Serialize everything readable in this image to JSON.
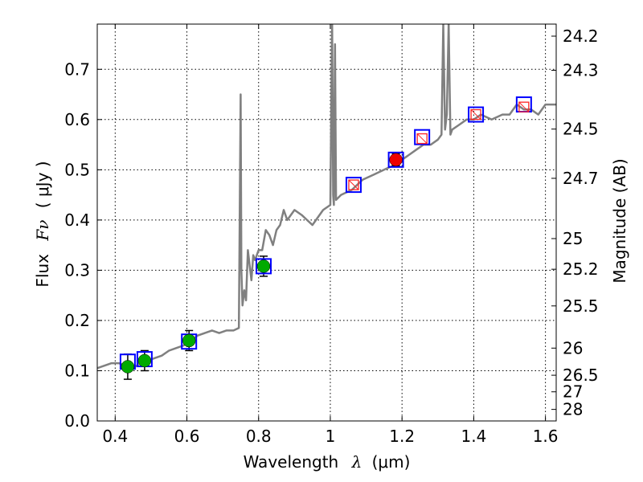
{
  "chart_data": {
    "type": "scatter",
    "xlabel_text": "Wavelength",
    "xlabel_symbol": "λ",
    "xlabel_unit": "(μm)",
    "ylabel_text": "Flux",
    "ylabel_symbol": "Fν",
    "ylabel_unit": "( μJy )",
    "y2label": "Magnitude (AB)",
    "xlim": [
      0.35,
      1.63
    ],
    "ylim": [
      0.0,
      0.79
    ],
    "grid": true,
    "x_ticks": [
      0.4,
      0.6,
      0.8,
      1.0,
      1.2,
      1.4,
      1.6
    ],
    "x_tick_labels": [
      "0.4",
      "0.6",
      "0.8",
      "1",
      "1.2",
      "1.4",
      "1.6"
    ],
    "y_ticks": [
      0.0,
      0.1,
      0.2,
      0.3,
      0.4,
      0.5,
      0.6,
      0.7
    ],
    "y_tick_labels": [
      "0.0",
      "0.1",
      "0.2",
      "0.3",
      "0.4",
      "0.5",
      "0.6",
      "0.7"
    ],
    "y2_ticks": [
      {
        "label": "24.2",
        "flux": 0.766
      },
      {
        "label": "24.3",
        "flux": 0.698
      },
      {
        "label": "24.5",
        "flux": 0.581
      },
      {
        "label": "24.7",
        "flux": 0.483
      },
      {
        "label": "25",
        "flux": 0.363
      },
      {
        "label": "25.2",
        "flux": 0.302
      },
      {
        "label": "25.5",
        "flux": 0.229
      },
      {
        "label": "26",
        "flux": 0.145
      },
      {
        "label": "26.5",
        "flux": 0.091
      },
      {
        "label": "27",
        "flux": 0.058
      },
      {
        "label": "28",
        "flux": 0.023
      }
    ],
    "series": [
      {
        "name": "model_spectrum",
        "kind": "line",
        "color": "#808080",
        "x": [
          0.35,
          0.37,
          0.39,
          0.41,
          0.43,
          0.45,
          0.47,
          0.49,
          0.51,
          0.53,
          0.55,
          0.57,
          0.59,
          0.61,
          0.63,
          0.65,
          0.67,
          0.69,
          0.71,
          0.73,
          0.745,
          0.75,
          0.752,
          0.755,
          0.76,
          0.765,
          0.77,
          0.78,
          0.785,
          0.79,
          0.8,
          0.81,
          0.82,
          0.83,
          0.84,
          0.85,
          0.86,
          0.87,
          0.88,
          0.9,
          0.92,
          0.95,
          0.98,
          1.0,
          1.005,
          1.008,
          1.01,
          1.013,
          1.016,
          1.03,
          1.06,
          1.09,
          1.12,
          1.15,
          1.18,
          1.2,
          1.22,
          1.24,
          1.26,
          1.28,
          1.3,
          1.31,
          1.315,
          1.32,
          1.325,
          1.33,
          1.335,
          1.34,
          1.36,
          1.38,
          1.4,
          1.42,
          1.45,
          1.48,
          1.5,
          1.52,
          1.54,
          1.56,
          1.58,
          1.6,
          1.63
        ],
        "y": [
          0.105,
          0.11,
          0.115,
          0.115,
          0.11,
          0.105,
          0.115,
          0.12,
          0.125,
          0.13,
          0.14,
          0.145,
          0.15,
          0.16,
          0.17,
          0.175,
          0.18,
          0.175,
          0.18,
          0.18,
          0.185,
          0.65,
          0.3,
          0.23,
          0.26,
          0.24,
          0.34,
          0.28,
          0.33,
          0.32,
          0.34,
          0.34,
          0.38,
          0.37,
          0.35,
          0.38,
          0.39,
          0.42,
          0.4,
          0.42,
          0.41,
          0.39,
          0.42,
          0.43,
          0.8,
          0.45,
          0.43,
          0.75,
          0.44,
          0.45,
          0.46,
          0.48,
          0.49,
          0.5,
          0.51,
          0.52,
          0.53,
          0.54,
          0.55,
          0.55,
          0.56,
          0.57,
          0.79,
          0.58,
          0.61,
          0.79,
          0.57,
          0.58,
          0.59,
          0.6,
          0.6,
          0.61,
          0.6,
          0.61,
          0.61,
          0.63,
          0.62,
          0.62,
          0.61,
          0.63,
          0.63
        ]
      },
      {
        "name": "model_photometry",
        "kind": "open_square",
        "color": "#0000ff",
        "x": [
          0.435,
          0.482,
          0.606,
          0.814,
          1.065,
          1.183,
          1.256,
          1.406,
          1.54
        ],
        "y": [
          0.118,
          0.123,
          0.158,
          0.308,
          0.47,
          0.52,
          0.565,
          0.61,
          0.63
        ]
      },
      {
        "name": "observed_photometry_limits",
        "kind": "red_outline_square",
        "color": "#ff2222",
        "x": [
          1.065,
          1.256,
          1.406,
          1.54
        ],
        "y": [
          0.47,
          0.562,
          0.61,
          0.625
        ]
      },
      {
        "name": "observed_photometry",
        "kind": "filled_circle",
        "colors": [
          "#00aa00",
          "#00aa00",
          "#00aa00",
          "#00aa00",
          "#ee0000"
        ],
        "x": [
          0.435,
          0.482,
          0.606,
          0.814,
          1.183
        ],
        "y": [
          0.108,
          0.12,
          0.16,
          0.308,
          0.52
        ],
        "err": [
          0.025,
          0.02,
          0.02,
          0.02,
          0.012
        ]
      }
    ]
  }
}
